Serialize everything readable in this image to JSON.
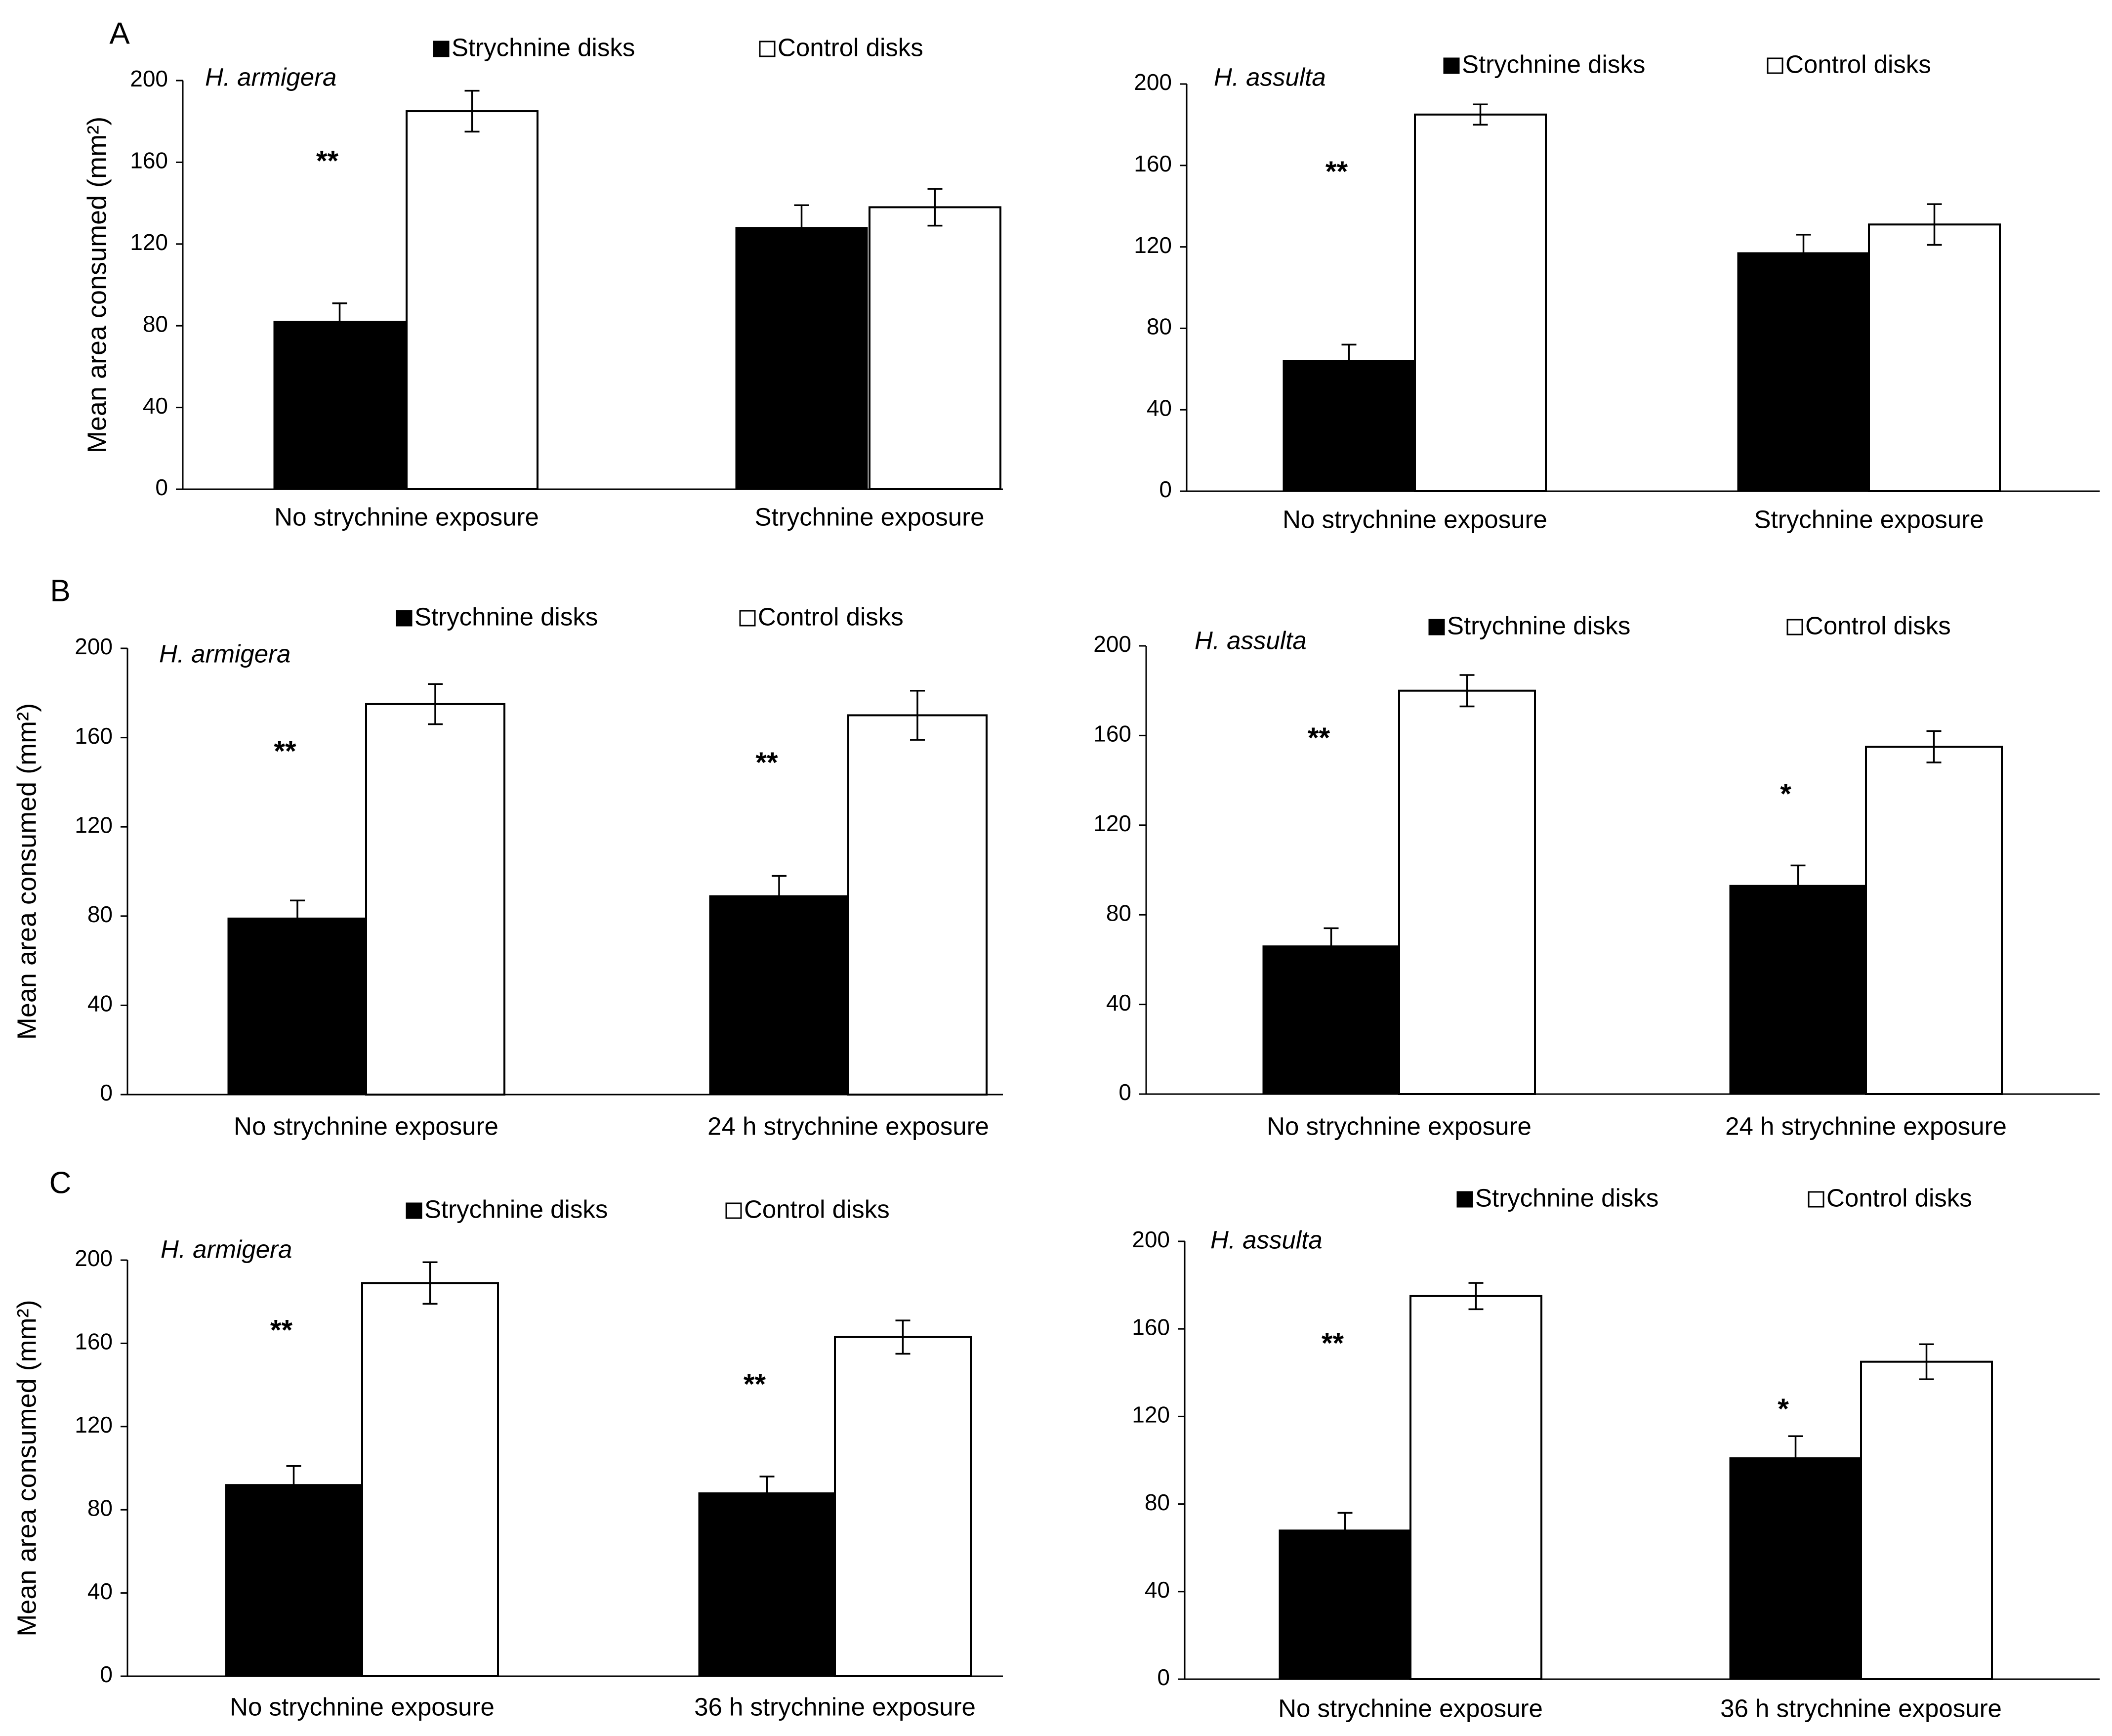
{
  "legend": {
    "strychnine": "Strychnine disks",
    "control": "Control disks"
  },
  "colors": {
    "strychnine": "#000000",
    "control": "#ffffff",
    "axis": "#000000"
  },
  "ylabel": "Mean area consumed (mm²)",
  "chart_data": [
    {
      "type": "bar",
      "panel": "A",
      "species": "H. armigera",
      "categories": [
        "No strychnine exposure",
        "Strychnine exposure"
      ],
      "series": [
        {
          "name": "Strychnine disks",
          "values": [
            82,
            128
          ],
          "errors": [
            9,
            11
          ]
        },
        {
          "name": "Control disks",
          "values": [
            185,
            138
          ],
          "errors": [
            10,
            9
          ]
        }
      ],
      "significance": [
        "**",
        ""
      ],
      "ylim": [
        0,
        200
      ],
      "yticks": [
        0,
        40,
        80,
        120,
        160,
        200
      ],
      "ylabel": "Mean area consumed (mm²)"
    },
    {
      "type": "bar",
      "panel": "",
      "species": "H. assulta",
      "categories": [
        "No strychnine exposure",
        "Strychnine exposure"
      ],
      "series": [
        {
          "name": "Strychnine disks",
          "values": [
            64,
            117
          ],
          "errors": [
            8,
            9
          ]
        },
        {
          "name": "Control disks",
          "values": [
            185,
            131
          ],
          "errors": [
            5,
            10
          ]
        }
      ],
      "significance": [
        "**",
        ""
      ],
      "ylim": [
        0,
        200
      ],
      "yticks": [
        0,
        40,
        80,
        120,
        160,
        200
      ],
      "ylabel": ""
    },
    {
      "type": "bar",
      "panel": "B",
      "species": "H. armigera",
      "categories": [
        "No strychnine exposure",
        "24 h strychnine exposure"
      ],
      "series": [
        {
          "name": "Strychnine disks",
          "values": [
            79,
            89
          ],
          "errors": [
            8,
            9
          ]
        },
        {
          "name": "Control disks",
          "values": [
            175,
            170
          ],
          "errors": [
            9,
            11
          ]
        }
      ],
      "significance": [
        "**",
        "**"
      ],
      "ylim": [
        0,
        200
      ],
      "yticks": [
        0,
        40,
        80,
        120,
        160,
        200
      ],
      "ylabel": "Mean area consumed (mm²)"
    },
    {
      "type": "bar",
      "panel": "",
      "species": "H. assulta",
      "categories": [
        "No strychnine exposure",
        "24 h strychnine exposure"
      ],
      "series": [
        {
          "name": "Strychnine disks",
          "values": [
            66,
            93
          ],
          "errors": [
            8,
            9
          ]
        },
        {
          "name": "Control disks",
          "values": [
            180,
            155
          ],
          "errors": [
            7,
            7
          ]
        }
      ],
      "significance": [
        "**",
        "*"
      ],
      "ylim": [
        0,
        200
      ],
      "yticks": [
        0,
        40,
        80,
        120,
        160,
        200
      ],
      "ylabel": ""
    },
    {
      "type": "bar",
      "panel": "C",
      "species": "H. armigera",
      "categories": [
        "No strychnine exposure",
        "36 h strychnine exposure"
      ],
      "series": [
        {
          "name": "Strychnine disks",
          "values": [
            92,
            88
          ],
          "errors": [
            9,
            8
          ]
        },
        {
          "name": "Control disks",
          "values": [
            189,
            163
          ],
          "errors": [
            10,
            8
          ]
        }
      ],
      "significance": [
        "**",
        "**"
      ],
      "ylim": [
        0,
        200
      ],
      "yticks": [
        0,
        40,
        80,
        120,
        160,
        200
      ],
      "ylabel": "Mean area consumed (mm²)"
    },
    {
      "type": "bar",
      "panel": "",
      "species": "H. assulta",
      "categories": [
        "No strychnine exposure",
        "36 h strychnine exposure"
      ],
      "series": [
        {
          "name": "Strychnine disks",
          "values": [
            68,
            101
          ],
          "errors": [
            8,
            10
          ]
        },
        {
          "name": "Control disks",
          "values": [
            175,
            145
          ],
          "errors": [
            6,
            8
          ]
        }
      ],
      "significance": [
        "**",
        "*"
      ],
      "ylim": [
        0,
        200
      ],
      "yticks": [
        0,
        40,
        80,
        120,
        160,
        200
      ],
      "ylabel": ""
    }
  ]
}
